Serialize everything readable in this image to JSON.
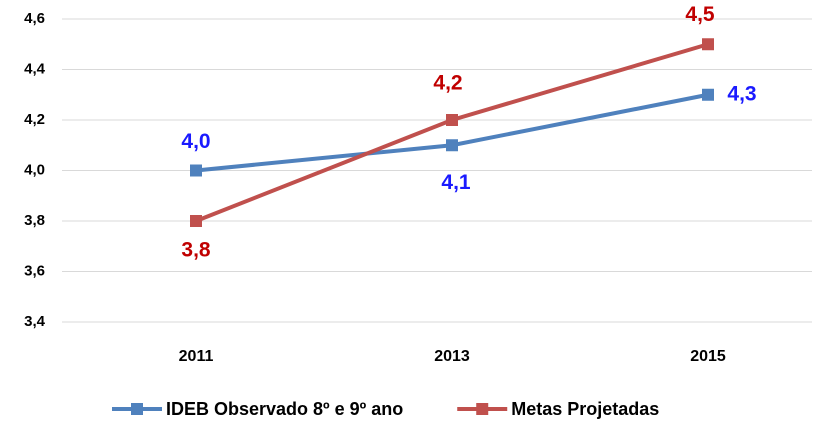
{
  "chart_data": {
    "type": "line",
    "categories": [
      "2011",
      "2013",
      "2015"
    ],
    "series": [
      {
        "name": "IDEB Observado 8º e 9º ano",
        "color": "#4f81bd",
        "label_color": "#1a1aff",
        "values": [
          4.0,
          4.1,
          4.3
        ],
        "value_labels": [
          "4,0",
          "4,1",
          "4,3"
        ]
      },
      {
        "name": "Metas Projetadas",
        "color": "#c0504d",
        "label_color": "#c00000",
        "values": [
          3.8,
          4.2,
          4.5
        ],
        "value_labels": [
          "3,8",
          "4,2",
          "4,5"
        ]
      }
    ],
    "ylim": [
      3.4,
      4.6
    ],
    "yticks": [
      {
        "value": 3.4,
        "label": "3,4"
      },
      {
        "value": 3.6,
        "label": "3,6"
      },
      {
        "value": 3.8,
        "label": "3,8"
      },
      {
        "value": 4.0,
        "label": "4,0"
      },
      {
        "value": 4.2,
        "label": "4,2"
      },
      {
        "value": 4.4,
        "label": "4,4"
      },
      {
        "value": 4.6,
        "label": "4,6"
      }
    ],
    "grid": true,
    "legend": "bottom"
  }
}
